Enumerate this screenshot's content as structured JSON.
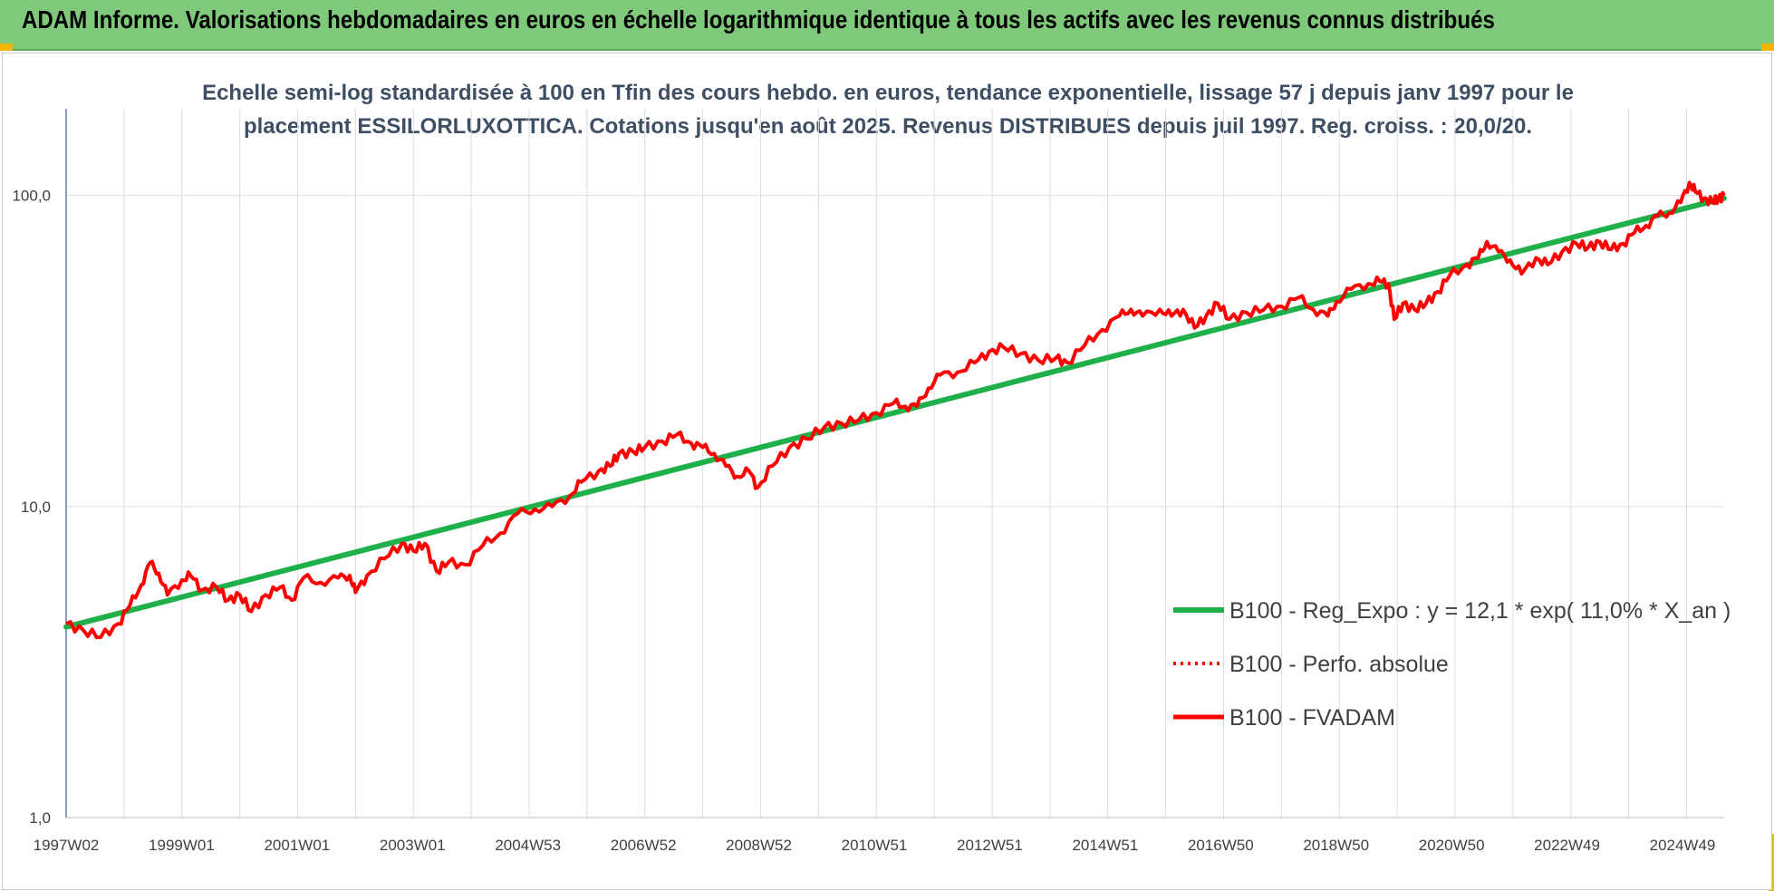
{
  "banner": {
    "title": "ADAM Informe. Valorisations hebdomadaires en euros en échelle logarithmique identique à tous les actifs avec les revenus connus distribués"
  },
  "chart_data": {
    "type": "line",
    "title_line1": "Echelle semi-log standardisée à 100 en Tfin des cours hebdo. en euros, tendance exponentielle, lissage 57 j depuis janv 1997 pour le",
    "title_line2": "placement ESSILORLUXOTTICA. Cotations jusqu'en août 2025. Revenus DISTRIBUES depuis juil 1997. Reg. croiss. : 20,0/20.",
    "y_scale": "log",
    "ylim": [
      1,
      190
    ],
    "y_ticks": [
      "1,0",
      "10,0",
      "100,0"
    ],
    "x_tick_labels": [
      "1997W02",
      "1999W01",
      "2001W01",
      "2003W01",
      "2004W53",
      "2006W52",
      "2008W52",
      "2010W51",
      "2012W51",
      "2014W51",
      "2016W50",
      "2018W50",
      "2020W50",
      "2022W49",
      "2024W49"
    ],
    "x_range_years": [
      1997.0,
      2025.65
    ],
    "grid": true,
    "legend_position": "bottom-right",
    "series": [
      {
        "name": "B100 - Reg_Expo : y = 12,1 * exp( 11,0% *  X_an )",
        "color": "#1fb04b",
        "style": "solid",
        "start": [
          1997.0,
          4.1
        ],
        "end": [
          2025.65,
          98
        ]
      },
      {
        "name": "B100 - Perfo. absolue",
        "color": "#ff0000",
        "style": "dotted",
        "values": []
      },
      {
        "name": "B100 - FVADAM",
        "color": "#ff0000",
        "style": "solid",
        "points": [
          [
            1997.0,
            4.2
          ],
          [
            1997.3,
            4.0
          ],
          [
            1997.6,
            3.8
          ],
          [
            1997.9,
            4.2
          ],
          [
            1998.1,
            4.8
          ],
          [
            1998.3,
            5.6
          ],
          [
            1998.45,
            6.6
          ],
          [
            1998.6,
            6.1
          ],
          [
            1998.75,
            5.2
          ],
          [
            1999.0,
            5.8
          ],
          [
            1999.15,
            6.0
          ],
          [
            1999.35,
            5.4
          ],
          [
            1999.6,
            5.5
          ],
          [
            1999.8,
            5.0
          ],
          [
            2000.0,
            5.2
          ],
          [
            2000.2,
            4.6
          ],
          [
            2000.45,
            5.2
          ],
          [
            2000.7,
            5.5
          ],
          [
            2000.9,
            5.0
          ],
          [
            2001.1,
            5.9
          ],
          [
            2001.4,
            5.7
          ],
          [
            2001.7,
            5.9
          ],
          [
            2001.9,
            6.0
          ],
          [
            2002.0,
            5.3
          ],
          [
            2002.2,
            6.0
          ],
          [
            2002.5,
            6.8
          ],
          [
            2002.8,
            7.6
          ],
          [
            2003.0,
            7.2
          ],
          [
            2003.2,
            7.6
          ],
          [
            2003.4,
            6.2
          ],
          [
            2003.6,
            6.6
          ],
          [
            2003.9,
            6.5
          ],
          [
            2004.2,
            7.5
          ],
          [
            2004.5,
            8.2
          ],
          [
            2004.8,
            9.5
          ],
          [
            2005.1,
            9.8
          ],
          [
            2005.4,
            10.0
          ],
          [
            2005.7,
            10.8
          ],
          [
            2005.9,
            12.0
          ],
          [
            2006.2,
            13.0
          ],
          [
            2006.4,
            13.5
          ],
          [
            2006.55,
            14.8
          ],
          [
            2006.8,
            15.0
          ],
          [
            2007.0,
            15.5
          ],
          [
            2007.3,
            16.2
          ],
          [
            2007.55,
            17.0
          ],
          [
            2007.8,
            16.0
          ],
          [
            2008.0,
            15.5
          ],
          [
            2008.2,
            14.8
          ],
          [
            2008.4,
            13.5
          ],
          [
            2008.6,
            12.5
          ],
          [
            2008.8,
            13.0
          ],
          [
            2008.95,
            11.5
          ],
          [
            2009.2,
            13.5
          ],
          [
            2009.5,
            15.5
          ],
          [
            2009.8,
            16.5
          ],
          [
            2010.1,
            18.0
          ],
          [
            2010.4,
            18.5
          ],
          [
            2010.7,
            19.0
          ],
          [
            2011.0,
            20.0
          ],
          [
            2011.3,
            21.5
          ],
          [
            2011.5,
            21.0
          ],
          [
            2011.7,
            21.0
          ],
          [
            2011.9,
            24.0
          ],
          [
            2012.1,
            26.5
          ],
          [
            2012.4,
            27.0
          ],
          [
            2012.7,
            29.0
          ],
          [
            2012.95,
            31.5
          ],
          [
            2013.2,
            32.5
          ],
          [
            2013.5,
            31.0
          ],
          [
            2013.8,
            29.5
          ],
          [
            2014.1,
            30.0
          ],
          [
            2014.3,
            29.0
          ],
          [
            2014.6,
            33.0
          ],
          [
            2014.9,
            37.0
          ],
          [
            2015.2,
            41.0
          ],
          [
            2015.4,
            43.0
          ],
          [
            2015.6,
            41.0
          ],
          [
            2015.9,
            43.0
          ],
          [
            2016.1,
            41.0
          ],
          [
            2016.3,
            43.0
          ],
          [
            2016.5,
            37.5
          ],
          [
            2016.7,
            41.0
          ],
          [
            2016.9,
            45.0
          ],
          [
            2017.1,
            40.0
          ],
          [
            2017.4,
            42.0
          ],
          [
            2017.7,
            43.0
          ],
          [
            2018.0,
            44.0
          ],
          [
            2018.3,
            47.0
          ],
          [
            2018.55,
            43.0
          ],
          [
            2018.8,
            41.0
          ],
          [
            2018.95,
            45.5
          ],
          [
            2019.2,
            50.0
          ],
          [
            2019.5,
            52.0
          ],
          [
            2019.7,
            53.0
          ],
          [
            2019.85,
            52.0
          ],
          [
            2019.95,
            40.0
          ],
          [
            2020.1,
            45.0
          ],
          [
            2020.3,
            43.0
          ],
          [
            2020.5,
            45.0
          ],
          [
            2020.7,
            49.0
          ],
          [
            2020.9,
            55.0
          ],
          [
            2021.2,
            60.0
          ],
          [
            2021.4,
            63.0
          ],
          [
            2021.55,
            71.0
          ],
          [
            2021.75,
            66.0
          ],
          [
            2021.95,
            62.0
          ],
          [
            2022.15,
            56.0
          ],
          [
            2022.4,
            63.0
          ],
          [
            2022.6,
            60.0
          ],
          [
            2022.85,
            66.0
          ],
          [
            2023.1,
            70.0
          ],
          [
            2023.3,
            68.0
          ],
          [
            2023.5,
            71.0
          ],
          [
            2023.7,
            67.0
          ],
          [
            2023.9,
            70.0
          ],
          [
            2024.1,
            76.0
          ],
          [
            2024.3,
            80.0
          ],
          [
            2024.5,
            86.0
          ],
          [
            2024.7,
            88.0
          ],
          [
            2024.9,
            95.0
          ],
          [
            2025.05,
            110.0
          ],
          [
            2025.15,
            103.0
          ],
          [
            2025.3,
            98.0
          ],
          [
            2025.45,
            95.0
          ],
          [
            2025.55,
            98.0
          ],
          [
            2025.65,
            100.0
          ]
        ]
      }
    ]
  }
}
